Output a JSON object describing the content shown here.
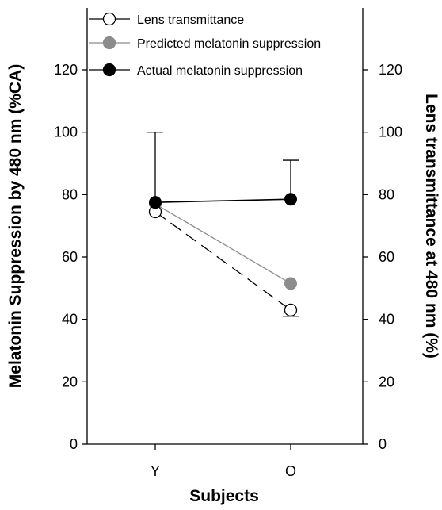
{
  "chart_data": {
    "type": "line",
    "xlabel": "Subjects",
    "ylabel": "Melatonin Suppression by 480 nm (%CA)",
    "y2label": "Lens transmittance at 480 nm (%)",
    "categories": [
      "Y",
      "O"
    ],
    "ylim": [
      0,
      140
    ],
    "y2lim": [
      0,
      140
    ],
    "yticks": [
      0,
      20,
      40,
      60,
      80,
      100,
      120
    ],
    "y2ticks": [
      0,
      20,
      40,
      60,
      80,
      100,
      120
    ],
    "legend_position": "top-left",
    "grid": false,
    "series": [
      {
        "name": "Lens transmittance",
        "values": [
          74.5,
          43
        ],
        "axis": "right",
        "marker": "open-circle",
        "line": "dashed",
        "color": "#000000"
      },
      {
        "name": "Predicted melatonin suppression",
        "values": [
          77,
          51.5
        ],
        "axis": "left",
        "marker": "gray-circle",
        "line": "solid",
        "color": "#8c8c8c"
      },
      {
        "name": "Actual melatonin suppression",
        "values": [
          77.5,
          78.5
        ],
        "axis": "left",
        "marker": "filled-circle",
        "line": "solid",
        "color": "#000000",
        "error_upper": [
          100,
          91
        ]
      }
    ],
    "lens_error_lower": [
      null,
      41
    ]
  }
}
